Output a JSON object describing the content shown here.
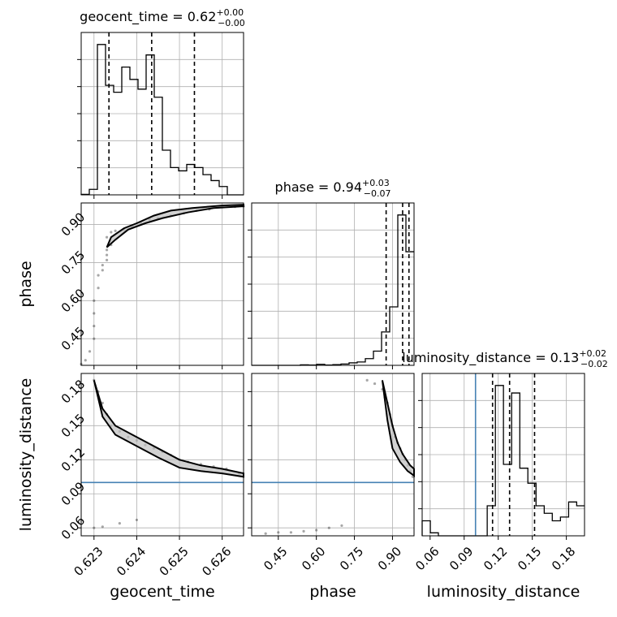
{
  "chart_data": {
    "type": "corner",
    "parameters": [
      "geocent_time",
      "phase",
      "luminosity_distance"
    ],
    "ranges": {
      "geocent_time": [
        0.6227,
        0.6265
      ],
      "phase": [
        0.345,
        0.985
      ],
      "luminosity_distance": [
        0.053,
        0.196
      ]
    },
    "ticks": {
      "geocent_time": [
        "0.623",
        "0.624",
        "0.625",
        "0.626"
      ],
      "phase": [
        "0.45",
        "0.60",
        "0.75",
        "0.90"
      ],
      "luminosity_distance": [
        "0.06",
        "0.09",
        "0.12",
        "0.15",
        "0.18"
      ]
    },
    "titles": [
      {
        "param": "geocent_time",
        "main": "geocent_time = 0.62",
        "sup": "+0.00",
        "sub": "−0.00"
      },
      {
        "param": "phase",
        "main": "phase = 0.94",
        "sup": "+0.03",
        "sub": "−0.07"
      },
      {
        "param": "luminosity_distance",
        "main": "luminosity_distance = 0.13",
        "sup": "+0.02",
        "sub": "−0.02"
      }
    ],
    "axis_labels": {
      "x": [
        "geocent_time",
        "phase",
        "luminosity_distance"
      ],
      "y": [
        "phase",
        "luminosity_distance"
      ]
    },
    "quantiles": {
      "geocent_time": [
        0.62335,
        0.62435,
        0.62535
      ],
      "phase": [
        0.875,
        0.94,
        0.965
      ],
      "luminosity_distance": [
        0.115,
        0.13,
        0.152
      ]
    },
    "truths": {
      "luminosity_distance": 0.1
    },
    "histograms": {
      "geocent_time": {
        "edges": [
          0.6227,
          0.62289,
          0.62308,
          0.62327,
          0.62346,
          0.62365,
          0.62384,
          0.62403,
          0.62422,
          0.62441,
          0.6246,
          0.62479,
          0.62498,
          0.62517,
          0.62536,
          0.62555,
          0.62574,
          0.62593,
          0.62612,
          0.62631,
          0.6265
        ],
        "counts": [
          0.2,
          2.3,
          63.3,
          46.1,
          43.2,
          53.8,
          48.6,
          44.5,
          58.9,
          41.1,
          18.8,
          11.5,
          10.1,
          12.8,
          11.5,
          8.5,
          6.0,
          3.5,
          0,
          0
        ]
      },
      "phase": {
        "edges": [
          0.345,
          0.377,
          0.409,
          0.441,
          0.473,
          0.505,
          0.537,
          0.569,
          0.601,
          0.633,
          0.665,
          0.697,
          0.729,
          0.761,
          0.793,
          0.825,
          0.857,
          0.889,
          0.921,
          0.953,
          0.985
        ],
        "counts": [
          0,
          0,
          0,
          0,
          0,
          0,
          0.3,
          0.2,
          0.6,
          0.2,
          0.4,
          0.8,
          1.5,
          2.0,
          4.0,
          8.5,
          20.0,
          35.0,
          90.0,
          68.0
        ]
      },
      "luminosity_distance": {
        "edges": [
          0.053,
          0.0602,
          0.0673,
          0.0745,
          0.0817,
          0.0888,
          0.096,
          0.1032,
          0.1103,
          0.1175,
          0.1246,
          0.1318,
          0.139,
          0.1461,
          0.1533,
          0.1605,
          0.1676,
          0.1748,
          0.182,
          0.1891,
          0.1963
        ],
        "counts": [
          2.0,
          0.4,
          0,
          0,
          0,
          0,
          0,
          0,
          4.0,
          20.0,
          9.5,
          19.0,
          9.0,
          7.0,
          4.0,
          3.0,
          2.0,
          2.5,
          4.5,
          4.0
        ]
      }
    },
    "scatter": {
      "phase_vs_geocent_time": [
        [
          0.6227,
          0.35
        ],
        [
          0.6228,
          0.365
        ],
        [
          0.6229,
          0.4
        ],
        [
          0.623,
          0.45
        ],
        [
          0.623,
          0.5
        ],
        [
          0.623,
          0.55
        ],
        [
          0.623,
          0.6
        ],
        [
          0.6231,
          0.65
        ],
        [
          0.6231,
          0.7
        ],
        [
          0.6232,
          0.72
        ],
        [
          0.6232,
          0.74
        ],
        [
          0.6233,
          0.76
        ],
        [
          0.6233,
          0.78
        ],
        [
          0.6233,
          0.8
        ],
        [
          0.6234,
          0.82
        ],
        [
          0.6233,
          0.85
        ],
        [
          0.6234,
          0.87
        ],
        [
          0.6235,
          0.875
        ],
        [
          0.6237,
          0.88
        ],
        [
          0.6239,
          0.89
        ],
        [
          0.6241,
          0.905
        ],
        [
          0.6243,
          0.92
        ],
        [
          0.6245,
          0.925
        ],
        [
          0.6248,
          0.935
        ],
        [
          0.6251,
          0.945
        ],
        [
          0.6254,
          0.955
        ],
        [
          0.6257,
          0.96
        ],
        [
          0.626,
          0.97
        ],
        [
          0.6263,
          0.97
        ],
        [
          0.6265,
          0.972
        ]
      ],
      "luminosity_distance_vs_geocent_time": [
        [
          0.623,
          0.06
        ],
        [
          0.6232,
          0.061
        ],
        [
          0.6236,
          0.064
        ],
        [
          0.624,
          0.067
        ],
        [
          0.623,
          0.19
        ],
        [
          0.6231,
          0.18
        ],
        [
          0.6232,
          0.17
        ],
        [
          0.6233,
          0.16
        ],
        [
          0.6234,
          0.15
        ],
        [
          0.6236,
          0.145
        ],
        [
          0.6238,
          0.14
        ],
        [
          0.624,
          0.137
        ],
        [
          0.6242,
          0.133
        ],
        [
          0.6244,
          0.13
        ],
        [
          0.6246,
          0.127
        ],
        [
          0.6248,
          0.124
        ],
        [
          0.625,
          0.12
        ],
        [
          0.6252,
          0.118
        ],
        [
          0.6255,
          0.116
        ],
        [
          0.6258,
          0.114
        ],
        [
          0.6261,
          0.112
        ],
        [
          0.6264,
          0.108
        ]
      ],
      "luminosity_distance_vs_phase": [
        [
          0.4,
          0.055
        ],
        [
          0.45,
          0.056
        ],
        [
          0.5,
          0.056
        ],
        [
          0.55,
          0.057
        ],
        [
          0.6,
          0.058
        ],
        [
          0.65,
          0.06
        ],
        [
          0.7,
          0.062
        ],
        [
          0.8,
          0.19
        ],
        [
          0.83,
          0.187
        ],
        [
          0.86,
          0.182
        ],
        [
          0.87,
          0.175
        ],
        [
          0.88,
          0.17
        ],
        [
          0.89,
          0.16
        ],
        [
          0.9,
          0.15
        ],
        [
          0.91,
          0.14
        ],
        [
          0.92,
          0.135
        ],
        [
          0.93,
          0.13
        ],
        [
          0.94,
          0.125
        ],
        [
          0.95,
          0.12
        ],
        [
          0.96,
          0.115
        ],
        [
          0.97,
          0.11
        ],
        [
          0.98,
          0.105
        ]
      ]
    },
    "contours": {
      "phase_vs_geocent_time": [
        [
          [
            0.6233,
            0.81
          ],
          [
            0.6234,
            0.85
          ],
          [
            0.6237,
            0.885
          ],
          [
            0.624,
            0.905
          ],
          [
            0.6244,
            0.935
          ],
          [
            0.6248,
            0.955
          ],
          [
            0.6253,
            0.965
          ],
          [
            0.626,
            0.975
          ],
          [
            0.6265,
            0.978
          ],
          [
            0.6265,
            0.972
          ],
          [
            0.6258,
            0.965
          ],
          [
            0.6252,
            0.948
          ],
          [
            0.6246,
            0.925
          ],
          [
            0.6242,
            0.905
          ],
          [
            0.6238,
            0.88
          ],
          [
            0.6235,
            0.84
          ],
          [
            0.6233,
            0.81
          ]
        ]
      ],
      "luminosity_distance_vs_geocent_time": [
        [
          [
            0.623,
            0.19
          ],
          [
            0.6232,
            0.165
          ],
          [
            0.6235,
            0.15
          ],
          [
            0.624,
            0.14
          ],
          [
            0.6245,
            0.13
          ],
          [
            0.625,
            0.12
          ],
          [
            0.6255,
            0.115
          ],
          [
            0.626,
            0.112
          ],
          [
            0.6265,
            0.108
          ],
          [
            0.6265,
            0.105
          ],
          [
            0.626,
            0.108
          ],
          [
            0.6255,
            0.11
          ],
          [
            0.625,
            0.113
          ],
          [
            0.6245,
            0.122
          ],
          [
            0.624,
            0.132
          ],
          [
            0.6235,
            0.142
          ],
          [
            0.6232,
            0.158
          ],
          [
            0.623,
            0.19
          ]
        ]
      ],
      "luminosity_distance_vs_phase": [
        [
          [
            0.86,
            0.19
          ],
          [
            0.88,
            0.17
          ],
          [
            0.9,
            0.15
          ],
          [
            0.92,
            0.135
          ],
          [
            0.94,
            0.125
          ],
          [
            0.97,
            0.115
          ],
          [
            0.985,
            0.112
          ],
          [
            0.985,
            0.106
          ],
          [
            0.96,
            0.11
          ],
          [
            0.93,
            0.118
          ],
          [
            0.9,
            0.13
          ],
          [
            0.88,
            0.155
          ],
          [
            0.86,
            0.19
          ]
        ]
      ]
    }
  }
}
